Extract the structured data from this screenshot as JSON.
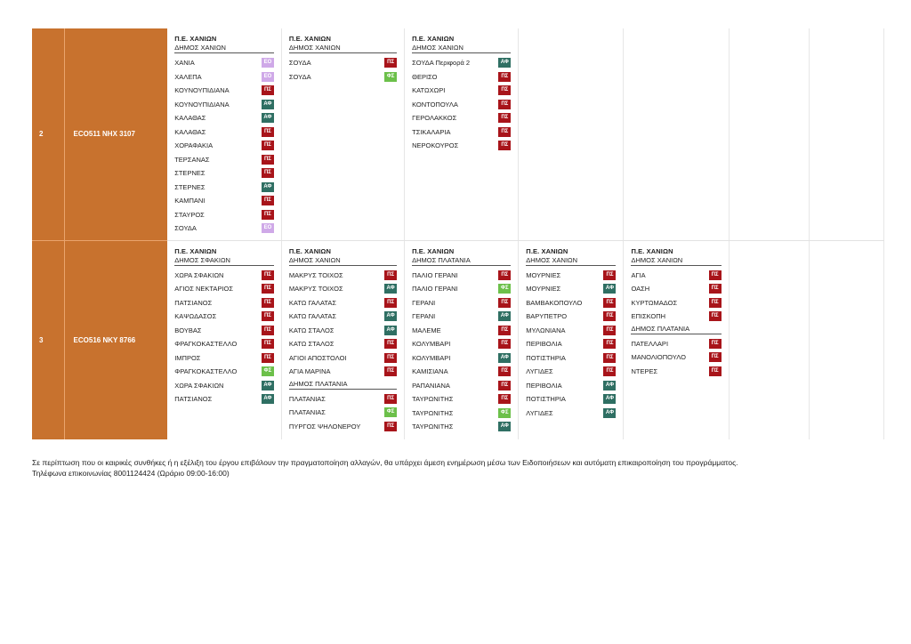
{
  "rows": [
    {
      "number": "2",
      "vehicle": "ECO511  NHX 3107",
      "cols": [
        {
          "pe": "Π.Ε. ΧΑΝΙΩΝ",
          "dimos": "ΔΗΜΟΣ ΧΑΝΙΩΝ",
          "stops": [
            {
              "name": "ΧΑΝΙΑ",
              "badge": "ΕΟ"
            },
            {
              "name": "ΧΑΛΕΠΑ",
              "badge": "ΕΟ"
            },
            {
              "name": "ΚΟΥΝΟΥΠΙΔΙΑΝΑ",
              "badge": "ΠΣ"
            },
            {
              "name": "ΚΟΥΝΟΥΠΙΔΙΑΝΑ",
              "badge": "ΑΦ"
            },
            {
              "name": "ΚΑΛΑΘΑΣ",
              "badge": "ΑΦ"
            },
            {
              "name": "ΚΑΛΑΘΑΣ",
              "badge": "ΠΣ"
            },
            {
              "name": "ΧΟΡΑΦΑΚΙΑ",
              "badge": "ΠΣ"
            },
            {
              "name": "ΤΕΡΣΑΝΑΣ",
              "badge": "ΠΣ"
            },
            {
              "name": "ΣΤΕΡΝΕΣ",
              "badge": "ΠΣ"
            },
            {
              "name": "ΣΤΕΡΝΕΣ",
              "badge": "ΑΦ"
            },
            {
              "name": "ΚΑΜΠΑΝΙ",
              "badge": "ΠΣ"
            },
            {
              "name": "ΣΤΑΥΡΟΣ",
              "badge": "ΠΣ"
            },
            {
              "name": "ΣΟΥΔΑ",
              "badge": "ΕΟ"
            }
          ]
        },
        {
          "pe": "Π.Ε. ΧΑΝΙΩΝ",
          "dimos": "ΔΗΜΟΣ ΧΑΝΙΩΝ",
          "stops": [
            {
              "name": "ΣΟΥΔΑ",
              "badge": "ΠΣ"
            },
            {
              "name": "ΣΟΥΔΑ",
              "badge": "ΦΣ"
            }
          ]
        },
        {
          "pe": "Π.Ε. ΧΑΝΙΩΝ",
          "dimos": "ΔΗΜΟΣ ΧΑΝΙΩΝ",
          "stops": [
            {
              "name": "ΣΟΥΔΑ Περιφορά 2",
              "badge": "ΑΦ"
            },
            {
              "name": "ΘΕΡΙΣΟ",
              "badge": "ΠΣ"
            },
            {
              "name": "ΚΑΤΩΧΩΡΙ",
              "badge": "ΠΣ"
            },
            {
              "name": "ΚΟΝΤΟΠΟΥΛΑ",
              "badge": "ΠΣ"
            },
            {
              "name": "ΓΕΡΟΛΑΚΚΟΣ",
              "badge": "ΠΣ"
            },
            {
              "name": "ΤΣΙΚΑΛΑΡΙΑ",
              "badge": "ΠΣ"
            },
            {
              "name": "ΝΕΡΟΚΟΥΡΟΣ",
              "badge": "ΠΣ"
            }
          ]
        }
      ]
    },
    {
      "number": "3",
      "vehicle": "ECO516  NKY 8766",
      "cols": [
        {
          "pe": "Π.Ε. ΧΑΝΙΩΝ",
          "dimos": "ΔΗΜΟΣ ΣΦΑΚΙΩΝ",
          "stops": [
            {
              "name": "ΧΩΡΑ ΣΦΑΚΙΩΝ",
              "badge": "ΠΣ"
            },
            {
              "name": "ΑΓΙΟΣ ΝΕΚΤΑΡΙΟΣ",
              "badge": "ΠΣ"
            },
            {
              "name": "ΠΑΤΣΙΑΝΟΣ",
              "badge": "ΠΣ"
            },
            {
              "name": "ΚΑΨΩΔΑΣΟΣ",
              "badge": "ΠΣ"
            },
            {
              "name": "ΒΟΥΒΑΣ",
              "badge": "ΠΣ"
            },
            {
              "name": "ΦΡΑΓΚΟΚΑΣΤΕΛΛΟ",
              "badge": "ΠΣ"
            },
            {
              "name": "ΙΜΠΡΟΣ",
              "badge": "ΠΣ"
            },
            {
              "name": "ΦΡΑΓΚΟΚΑΣΤΕΛΛΟ",
              "badge": "ΦΣ"
            },
            {
              "name": "ΧΩΡΑ ΣΦΑΚΙΩΝ",
              "badge": "ΑΦ"
            },
            {
              "name": "ΠΑΤΣΙΑΝΟΣ",
              "badge": "ΑΦ"
            }
          ]
        },
        {
          "pe": "Π.Ε. ΧΑΝΙΩΝ",
          "dimos": "ΔΗΜΟΣ ΧΑΝΙΩΝ",
          "stops": [
            {
              "name": "ΜΑΚΡΥΣ ΤΟΙΧΟΣ",
              "badge": "ΠΣ"
            },
            {
              "name": "ΜΑΚΡΥΣ ΤΟΙΧΟΣ",
              "badge": "ΑΦ"
            },
            {
              "name": "ΚΑΤΩ ΓΑΛΑΤΑΣ",
              "badge": "ΠΣ"
            },
            {
              "name": "ΚΑΤΩ ΓΑΛΑΤΑΣ",
              "badge": "ΑΦ"
            },
            {
              "name": "ΚΑΤΩ ΣΤΑΛΟΣ",
              "badge": "ΑΦ"
            },
            {
              "name": "ΚΑΤΩ ΣΤΑΛΟΣ",
              "badge": "ΠΣ"
            },
            {
              "name": "ΑΓΙΟΙ ΑΠΟΣΤΟΛΟΙ",
              "badge": "ΠΣ"
            },
            {
              "name": "ΑΓΙΑ ΜΑΡΙΝΑ",
              "badge": "ΠΣ"
            },
            {
              "subheader": "ΔΗΜΟΣ ΠΛΑΤΑΝΙΑ"
            },
            {
              "name": "ΠΛΑΤΑΝΙΑΣ",
              "badge": "ΠΣ"
            },
            {
              "name": "ΠΛΑΤΑΝΙΑΣ",
              "badge": "ΦΣ"
            },
            {
              "name": "ΠΥΡΓΟΣ ΨΗΛΟΝΕΡΟΥ",
              "badge": "ΠΣ"
            }
          ]
        },
        {
          "pe": "Π.Ε. ΧΑΝΙΩΝ",
          "dimos": "ΔΗΜΟΣ ΠΛΑΤΑΝΙΑ",
          "stops": [
            {
              "name": "ΠΑΛΙΟ ΓΕΡΑΝΙ",
              "badge": "ΠΣ"
            },
            {
              "name": "ΠΑΛΙΟ ΓΕΡΑΝΙ",
              "badge": "ΦΣ"
            },
            {
              "name": "ΓΕΡΑΝΙ",
              "badge": "ΠΣ"
            },
            {
              "name": "ΓΕΡΑΝΙ",
              "badge": "ΑΦ"
            },
            {
              "name": "ΜΑΛΕΜΕ",
              "badge": "ΠΣ"
            },
            {
              "name": "ΚΟΛΥΜΒΑΡΙ",
              "badge": "ΠΣ"
            },
            {
              "name": "ΚΟΛΥΜΒΑΡΙ",
              "badge": "ΑΦ"
            },
            {
              "name": "ΚΑΜΙΣΙΑΝΑ",
              "badge": "ΠΣ"
            },
            {
              "name": "ΡΑΠΑΝΙΑΝΑ",
              "badge": "ΠΣ"
            },
            {
              "name": "ΤΑΥΡΩΝΙΤΗΣ",
              "badge": "ΠΣ"
            },
            {
              "name": "ΤΑΥΡΩΝΙΤΗΣ",
              "badge": "ΦΣ"
            },
            {
              "name": "ΤΑΥΡΩΝΙΤΗΣ",
              "badge": "ΑΦ"
            }
          ]
        },
        {
          "pe": "Π.Ε. ΧΑΝΙΩΝ",
          "dimos": "ΔΗΜΟΣ ΧΑΝΙΩΝ",
          "stops": [
            {
              "name": "ΜΟΥΡΝΙΕΣ",
              "badge": "ΠΣ"
            },
            {
              "name": "ΜΟΥΡΝΙΕΣ",
              "badge": "ΑΦ"
            },
            {
              "name": "ΒΑΜΒΑΚΟΠΟΥΛΟ",
              "badge": "ΠΣ"
            },
            {
              "name": "ΒΑΡΥΠΕΤΡΟ",
              "badge": "ΠΣ"
            },
            {
              "name": "ΜΥΛΩΝΙΑΝΑ",
              "badge": "ΠΣ"
            },
            {
              "name": "ΠΕΡΙΒΟΛΙΑ",
              "badge": "ΠΣ"
            },
            {
              "name": "ΠΟΤΙΣΤΗΡΙΑ",
              "badge": "ΠΣ"
            },
            {
              "name": "ΛΥΓΙΔΕΣ",
              "badge": "ΠΣ"
            },
            {
              "name": "ΠΕΡΙΒΟΛΙΑ",
              "badge": "ΑΦ"
            },
            {
              "name": "ΠΟΤΙΣΤΗΡΙΑ",
              "badge": "ΑΦ"
            },
            {
              "name": "ΛΥΓΙΔΕΣ",
              "badge": "ΑΦ"
            }
          ]
        },
        {
          "pe": "Π.Ε. ΧΑΝΙΩΝ",
          "dimos": "ΔΗΜΟΣ ΧΑΝΙΩΝ",
          "stops": [
            {
              "name": "ΑΓΙΑ",
              "badge": "ΠΣ"
            },
            {
              "name": "ΟΑΣΗ",
              "badge": "ΠΣ"
            },
            {
              "name": "ΚΥΡΤΩΜΑΔΟΣ",
              "badge": "ΠΣ"
            },
            {
              "name": "ΕΠΙΣΚΟΠΗ",
              "badge": "ΠΣ"
            },
            {
              "subheader": "ΔΗΜΟΣ ΠΛΑΤΑΝΙΑ"
            },
            {
              "name": "ΠΑΤΕΛΛΑΡΙ",
              "badge": "ΠΣ"
            },
            {
              "name": "ΜΑΝΟΛΙΟΠΟΥΛΟ",
              "badge": "ΠΣ"
            },
            {
              "name": "ΝΤΕΡΕΣ",
              "badge": "ΠΣ"
            }
          ]
        }
      ]
    }
  ],
  "footer": {
    "line1": "Σε περίπτωση που οι καιρικές συνθήκες ή η εξέλιξη του έργου επιβάλουν την πραγματοποίηση αλλαγών, θα υπάρχει άμεση ενημέρωση μέσω των Ειδοποιήσεων και αυτόματη επικαιροποίηση του προγράμματος.",
    "line2": "Τηλέφωνα επικοινωνίας 8001124424 (Ωράριο 09:00-16:00)"
  },
  "badge_colors": {
    "ΠΣ": "#a8141a",
    "ΑΦ": "#2f6f63",
    "ΦΣ": "#6cc04a",
    "ΕΟ": "#cfa9e8"
  },
  "accent_color": "#c8722e"
}
